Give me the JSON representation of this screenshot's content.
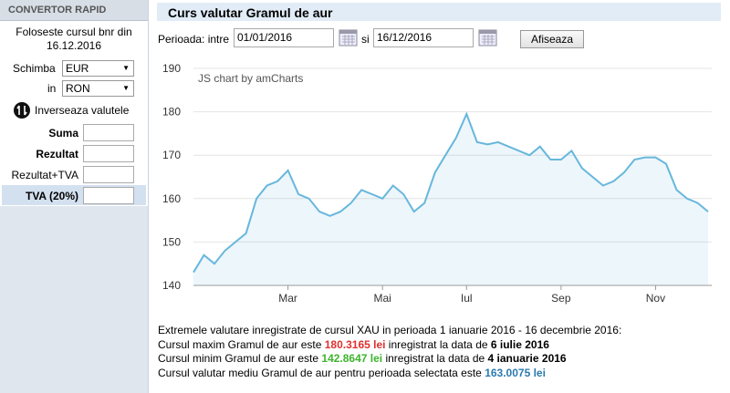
{
  "sidebar": {
    "title": "CONVERTOR RAPID",
    "note": "Foloseste cursul bnr din 16.12.2016",
    "from_label": "Schimba",
    "from_value": "EUR",
    "to_label": "in",
    "to_value": "RON",
    "swap": "Inverseaza valutele",
    "fields": [
      "Suma",
      "Rezultat",
      "Rezultat+TVA",
      "TVA (20%)"
    ]
  },
  "main": {
    "title": "Curs valutar Gramul de aur",
    "period_label": "Perioada: intre",
    "start": "01/01/2016",
    "and": "si",
    "end": "16/12/2016",
    "button": "Afiseaza",
    "summary": [
      [
        "Extremele valutare inregistrate de cursul XAU in perioada 1 ianuarie 2016 - 16 decembrie 2016:"
      ],
      [
        "Cursul maxim Gramul de aur este ",
        "180.3165 lei",
        " inregistrat la data de ",
        "6 iulie 2016"
      ],
      [
        "Cursul minim Gramul de aur este ",
        "142.8647 lei",
        " inregistrat la data de ",
        "4 ianuarie 2016"
      ],
      [
        "Cursul valutar mediu Gramul de aur pentru perioada selectata este ",
        "163.0075 lei"
      ]
    ]
  },
  "chart_data": {
    "type": "line",
    "credit": "JS chart by amCharts",
    "color": "#67b7dc",
    "grid": true,
    "categories": [
      null,
      null,
      null,
      null,
      null,
      null,
      null,
      null,
      null,
      "Mar",
      null,
      null,
      null,
      null,
      null,
      null,
      null,
      null,
      "Mai",
      null,
      null,
      null,
      null,
      null,
      null,
      null,
      "Iul",
      null,
      null,
      null,
      null,
      null,
      null,
      null,
      null,
      "Sep",
      null,
      null,
      null,
      null,
      null,
      null,
      null,
      null,
      "Nov",
      null,
      null,
      null,
      null,
      null
    ],
    "values": [
      143,
      147,
      145,
      148,
      150,
      152,
      160,
      163,
      164,
      166.5,
      161,
      160,
      157,
      156,
      157,
      159,
      162,
      161,
      160,
      163,
      161,
      157,
      159,
      166,
      170,
      174,
      179.5,
      173,
      172.5,
      173,
      172,
      171,
      170,
      172,
      169,
      169,
      171,
      167,
      165,
      163,
      164,
      166,
      169,
      169.5,
      169.5,
      168,
      162,
      160,
      159,
      157
    ],
    "ylim": [
      140,
      190
    ],
    "yticks": [
      140,
      150,
      160,
      170,
      180,
      190
    ]
  }
}
